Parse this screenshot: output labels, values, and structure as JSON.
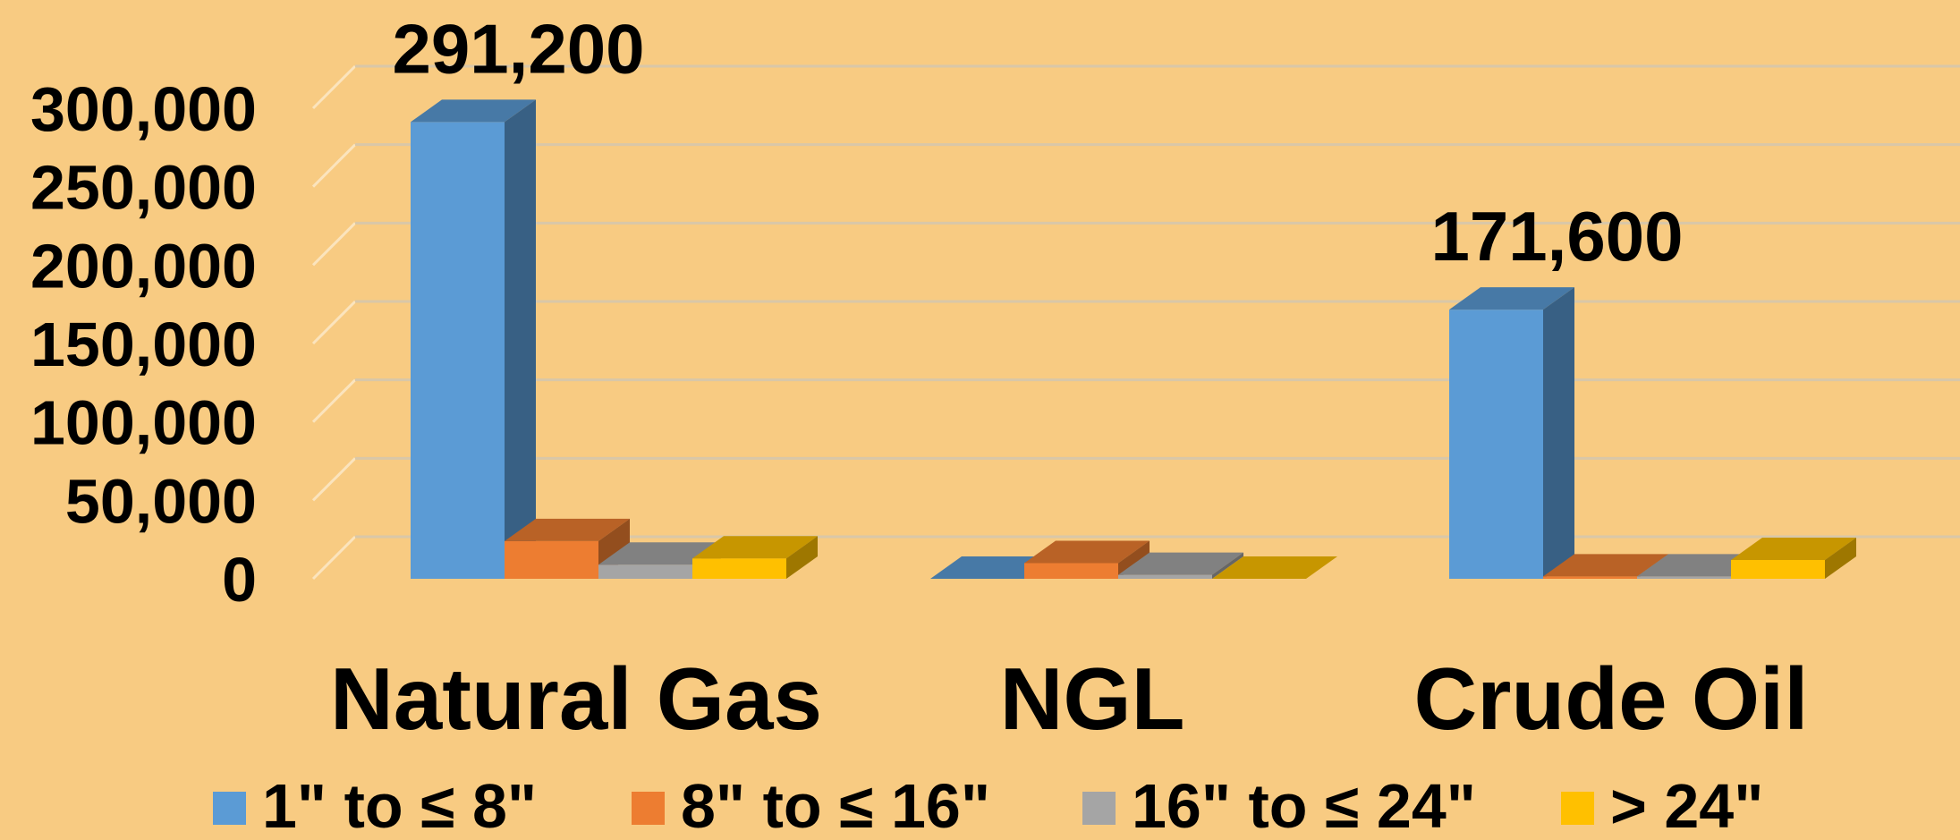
{
  "chart_data": {
    "type": "bar",
    "three_d": true,
    "categories": [
      "Natural Gas",
      "NGL",
      "Crude Oil"
    ],
    "series": [
      {
        "name": "1\" to ≤ 8\"",
        "color": "#5B9BD5",
        "values": [
          291200,
          0,
          171600
        ]
      },
      {
        "name": "8\" to ≤ 16\"",
        "color": "#ED7D31",
        "values": [
          24000,
          10000,
          1500
        ]
      },
      {
        "name": "16\" to ≤ 24\"",
        "color": "#A5A5A5",
        "values": [
          9000,
          2500,
          1500
        ]
      },
      {
        "name": "> 24\"",
        "color": "#FFC000",
        "values": [
          13000,
          0,
          12000
        ]
      }
    ],
    "data_labels": [
      {
        "series": 0,
        "category": 0,
        "text": "291,200"
      },
      {
        "series": 0,
        "category": 2,
        "text": "171,600"
      }
    ],
    "y_ticks": [
      0,
      50000,
      100000,
      150000,
      200000,
      250000,
      300000
    ],
    "y_tick_labels": [
      "0",
      "50,000",
      "100,000",
      "150,000",
      "200,000",
      "250,000",
      "300,000"
    ],
    "ylim": [
      0,
      300000
    ],
    "grid": true,
    "legend_position": "bottom",
    "background": "#F8CB82"
  }
}
